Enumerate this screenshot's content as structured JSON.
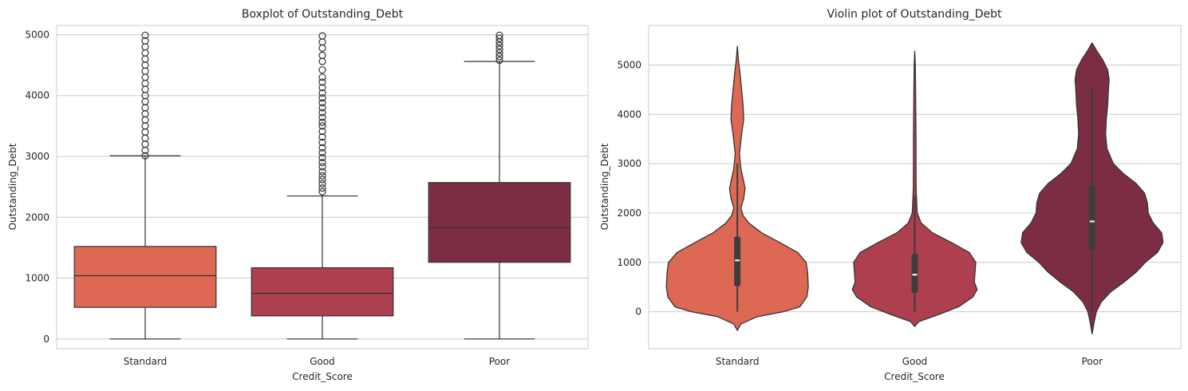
{
  "chart_data": [
    {
      "type": "boxplot",
      "title": "Boxplot of Outstanding_Debt",
      "xlabel": "Credit_Score",
      "ylabel": "Outstanding_Debt",
      "categories": [
        "Standard",
        "Good",
        "Poor"
      ],
      "yticks": [
        0,
        1000,
        2000,
        3000,
        4000,
        5000
      ],
      "ylim": [
        -160,
        5150
      ],
      "grid": true,
      "colors": [
        "#dd6955",
        "#ad3f4f",
        "#7c2d44"
      ],
      "boxes": [
        {
          "category": "Standard",
          "min": 0,
          "q1": 520,
          "median": 1040,
          "q3": 1520,
          "whisker_high": 3010,
          "outliers": [
            3010,
            3100,
            3200,
            3300,
            3400,
            3500,
            3600,
            3700,
            3800,
            3900,
            4000,
            4100,
            4200,
            4300,
            4400,
            4500,
            4600,
            4700,
            4800,
            4900,
            4990
          ]
        },
        {
          "category": "Good",
          "min": 0,
          "q1": 380,
          "median": 750,
          "q3": 1170,
          "whisker_high": 2350,
          "outliers": [
            2420,
            2480,
            2550,
            2620,
            2680,
            2750,
            2830,
            2900,
            2980,
            3060,
            3140,
            3230,
            3320,
            3410,
            3500,
            3560,
            3640,
            3720,
            3800,
            3880,
            3960,
            4040,
            4130,
            4220,
            4300,
            4420,
            4560,
            4660,
            4780,
            4880,
            4980
          ]
        },
        {
          "category": "Poor",
          "min": 0,
          "q1": 1260,
          "median": 1830,
          "q3": 2570,
          "whisker_high": 4560,
          "outliers": [
            4580,
            4640,
            4700,
            4760,
            4820,
            4880,
            4940,
            4990
          ]
        }
      ]
    },
    {
      "type": "violin",
      "title": "Violin plot of Outstanding_Debt",
      "xlabel": "Credit_Score",
      "ylabel": "Outstanding_Debt",
      "categories": [
        "Standard",
        "Good",
        "Poor"
      ],
      "yticks": [
        0,
        1000,
        2000,
        3000,
        4000,
        5000
      ],
      "ylim": [
        -750,
        5800
      ],
      "grid": true,
      "colors": [
        "#dd6955",
        "#ad3f4f",
        "#7c2d44"
      ],
      "violins": [
        {
          "category": "Standard",
          "median": 1040,
          "q1": 520,
          "q3": 1520,
          "whisker_low": 0,
          "whisker_high": 3010,
          "density": [
            [
              -380,
              0.0
            ],
            [
              -250,
              0.05
            ],
            [
              -100,
              0.28
            ],
            [
              0,
              0.65
            ],
            [
              100,
              0.88
            ],
            [
              300,
              0.98
            ],
            [
              500,
              1.0
            ],
            [
              800,
              0.99
            ],
            [
              1000,
              0.97
            ],
            [
              1200,
              0.85
            ],
            [
              1400,
              0.6
            ],
            [
              1600,
              0.34
            ],
            [
              1800,
              0.16
            ],
            [
              1950,
              0.08
            ],
            [
              2100,
              0.05
            ],
            [
              2300,
              0.09
            ],
            [
              2500,
              0.11
            ],
            [
              2700,
              0.08
            ],
            [
              2900,
              0.05
            ],
            [
              3200,
              0.03
            ],
            [
              3600,
              0.06
            ],
            [
              3900,
              0.09
            ],
            [
              4200,
              0.08
            ],
            [
              4500,
              0.06
            ],
            [
              4800,
              0.04
            ],
            [
              5100,
              0.015
            ],
            [
              5380,
              0.0
            ]
          ]
        },
        {
          "category": "Good",
          "median": 750,
          "q1": 380,
          "q3": 1170,
          "whisker_low": 0,
          "whisker_high": 2350,
          "density": [
            [
              -300,
              0.0
            ],
            [
              -200,
              0.06
            ],
            [
              -50,
              0.35
            ],
            [
              100,
              0.62
            ],
            [
              300,
              0.82
            ],
            [
              450,
              0.88
            ],
            [
              600,
              0.84
            ],
            [
              800,
              0.85
            ],
            [
              1000,
              0.86
            ],
            [
              1200,
              0.77
            ],
            [
              1400,
              0.52
            ],
            [
              1600,
              0.25
            ],
            [
              1800,
              0.09
            ],
            [
              2000,
              0.035
            ],
            [
              2500,
              0.02
            ],
            [
              3000,
              0.018
            ],
            [
              3500,
              0.018
            ],
            [
              4000,
              0.015
            ],
            [
              4500,
              0.012
            ],
            [
              5000,
              0.008
            ],
            [
              5280,
              0.0
            ]
          ]
        },
        {
          "category": "Poor",
          "median": 1830,
          "q1": 1260,
          "q3": 2570,
          "whisker_low": 0,
          "whisker_high": 4560,
          "density": [
            [
              -450,
              0.0
            ],
            [
              -200,
              0.03
            ],
            [
              0,
              0.06
            ],
            [
              200,
              0.13
            ],
            [
              400,
              0.26
            ],
            [
              600,
              0.45
            ],
            [
              800,
              0.62
            ],
            [
              1000,
              0.75
            ],
            [
              1200,
              0.92
            ],
            [
              1400,
              1.0
            ],
            [
              1600,
              0.98
            ],
            [
              1800,
              0.86
            ],
            [
              2000,
              0.79
            ],
            [
              2200,
              0.78
            ],
            [
              2400,
              0.74
            ],
            [
              2600,
              0.62
            ],
            [
              2800,
              0.44
            ],
            [
              3000,
              0.3
            ],
            [
              3300,
              0.21
            ],
            [
              3600,
              0.19
            ],
            [
              3900,
              0.2
            ],
            [
              4200,
              0.22
            ],
            [
              4500,
              0.23
            ],
            [
              4700,
              0.24
            ],
            [
              4900,
              0.22
            ],
            [
              5100,
              0.15
            ],
            [
              5300,
              0.06
            ],
            [
              5450,
              0.0
            ]
          ]
        }
      ]
    }
  ]
}
